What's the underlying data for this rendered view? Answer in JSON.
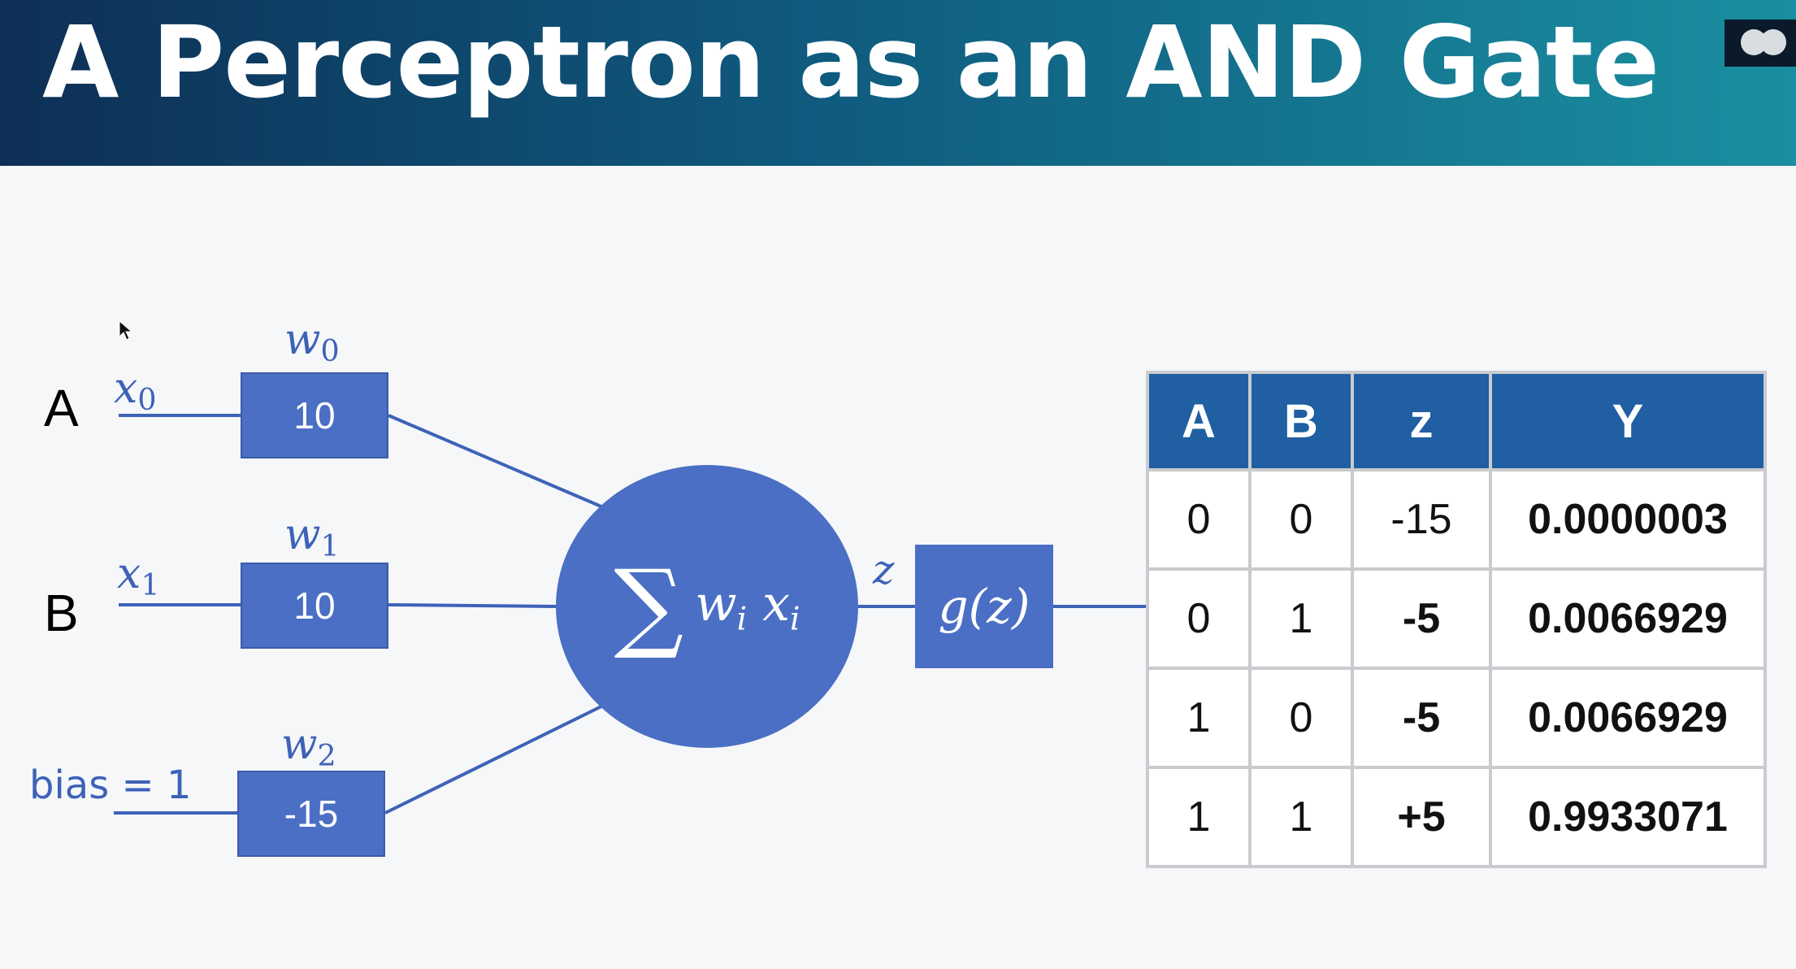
{
  "title": "A Perceptron as an AND Gate",
  "inputs": [
    {
      "node": "A",
      "var": "x",
      "sub": "0",
      "weight_var": "w",
      "weight_sub": "0",
      "weight": "10"
    },
    {
      "node": "B",
      "var": "x",
      "sub": "1",
      "weight_var": "w",
      "weight_sub": "1",
      "weight": "10"
    },
    {
      "bias_label": "bias = 1",
      "weight_var": "w",
      "weight_sub": "2",
      "weight": "-15"
    }
  ],
  "summation": {
    "symbol": "∑",
    "term_w": "w",
    "term_w_sub": "i",
    "term_x": "x",
    "term_x_sub": "i"
  },
  "z_label": "z",
  "activation": "g(z)",
  "colors": {
    "banner_left": "#0e2f55",
    "banner_right": "#1a8fa0",
    "node_fill": "#4a6fc4",
    "table_header": "#1f5fa2",
    "low_output": "#dc3f80",
    "high_output": "#25a9ac"
  },
  "truth_table": {
    "headers": [
      "A",
      "B",
      "z",
      "Y"
    ],
    "rows": [
      {
        "a": "0",
        "b": "0",
        "z": "-15",
        "y": "0.0000003"
      },
      {
        "a": "0",
        "b": "1",
        "z": "-5",
        "y": "0.0066929"
      },
      {
        "a": "1",
        "b": "0",
        "z": "-5",
        "y": "0.0066929"
      },
      {
        "a": "1",
        "b": "1",
        "z": "+5",
        "y": "0.9933071"
      }
    ]
  }
}
